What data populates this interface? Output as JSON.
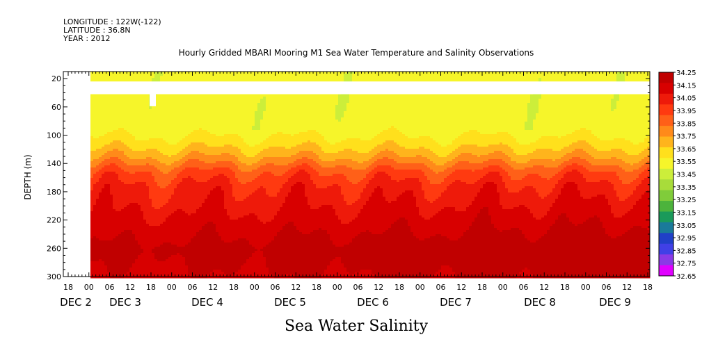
{
  "header": {
    "longitude": "LONGITUDE : 122W(-122)",
    "latitude": "LATITUDE : 36.8N",
    "year": "YEAR : 2012"
  },
  "chart_data": {
    "type": "heatmap",
    "title": "Hourly Gridded MBARI Mooring M1 Sea Water Temperature and Salinity Observations",
    "xlabel": "Sea Water Salinity",
    "ylabel": "DEPTH (m)",
    "yticks": [
      "20",
      "60",
      "100",
      "140",
      "180",
      "220",
      "260",
      "300"
    ],
    "ylim": [
      10,
      300
    ],
    "y_reversed": true,
    "x_hour_ticks": [
      "18",
      "00",
      "06",
      "12",
      "18",
      "00",
      "06",
      "12",
      "18",
      "00",
      "06",
      "12",
      "18",
      "00",
      "06",
      "12",
      "18",
      "00",
      "06",
      "12",
      "18",
      "00",
      "06",
      "12",
      "18",
      "00",
      "06",
      "12",
      "18"
    ],
    "x_day_labels": [
      "DEC  2",
      "DEC  3",
      "DEC  4",
      "DEC  5",
      "DEC  6",
      "DEC  7",
      "DEC  8",
      "DEC  9"
    ],
    "colorbar": {
      "min": 32.65,
      "max": 34.25,
      "step": 0.1,
      "labels": [
        "34.25",
        "34.15",
        "34.05",
        "33.95",
        "33.85",
        "33.75",
        "33.65",
        "33.55",
        "33.45",
        "33.35",
        "33.25",
        "33.15",
        "33.05",
        "32.95",
        "32.85",
        "32.75",
        "32.65"
      ],
      "colors": [
        "#c00000",
        "#d80000",
        "#ee1a0a",
        "#ff3a10",
        "#ff6018",
        "#ff8a1a",
        "#ffb41c",
        "#ffe01c",
        "#f6f52a",
        "#ccee3a",
        "#a8dc3a",
        "#80cc3a",
        "#4cb33c",
        "#1a9a5a",
        "#1a7a9a",
        "#2040c8",
        "#4040e6",
        "#8a3ae6",
        "#e000ff"
      ]
    },
    "depth_profile": [
      {
        "depth": 10,
        "salinity": 33.38
      },
      {
        "depth": 60,
        "salinity": 33.38
      },
      {
        "depth": 90,
        "salinity": 33.4
      },
      {
        "depth": 110,
        "salinity": 33.5
      },
      {
        "depth": 130,
        "salinity": 33.65
      },
      {
        "depth": 150,
        "salinity": 33.85
      },
      {
        "depth": 170,
        "salinity": 33.95
      },
      {
        "depth": 200,
        "salinity": 34.02
      },
      {
        "depth": 230,
        "salinity": 34.1
      },
      {
        "depth": 260,
        "salinity": 34.17
      },
      {
        "depth": 300,
        "salinity": 34.12
      }
    ]
  }
}
